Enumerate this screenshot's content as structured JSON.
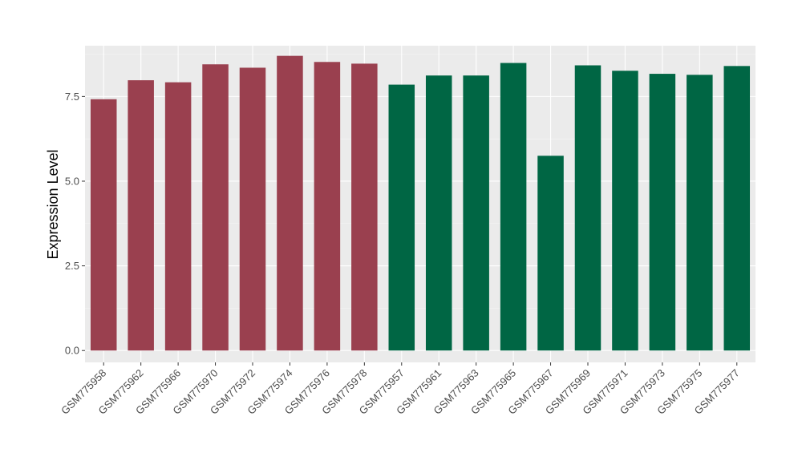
{
  "chart_data": {
    "type": "bar",
    "title": "",
    "xlabel": "",
    "ylabel": "Expression Level",
    "ylim": [
      -0.35,
      9.0
    ],
    "y_ticks": [
      0.0,
      2.5,
      5.0,
      7.5
    ],
    "y_tick_labels": [
      "0.0",
      "2.5",
      "5.0",
      "7.5"
    ],
    "grid": true,
    "legend": "none",
    "categories": [
      "GSM775958",
      "GSM775962",
      "GSM775966",
      "GSM775970",
      "GSM775972",
      "GSM775974",
      "GSM775976",
      "GSM775978",
      "GSM775957",
      "GSM775961",
      "GSM775963",
      "GSM775965",
      "GSM775967",
      "GSM775969",
      "GSM775971",
      "GSM775973",
      "GSM775975",
      "GSM775977"
    ],
    "values": [
      7.42,
      7.98,
      7.92,
      8.45,
      8.35,
      8.7,
      8.52,
      8.47,
      7.85,
      8.12,
      8.12,
      8.49,
      5.75,
      8.42,
      8.26,
      8.17,
      8.14,
      8.4
    ],
    "groups": [
      0,
      0,
      0,
      0,
      0,
      0,
      0,
      0,
      1,
      1,
      1,
      1,
      1,
      1,
      1,
      1,
      1,
      1
    ],
    "colors": {
      "group_0": "#9a404f",
      "group_1": "#006644",
      "panel_background": "#ebebeb",
      "grid_major": "#ffffff",
      "grid_minor": "#f5f5f5"
    }
  }
}
